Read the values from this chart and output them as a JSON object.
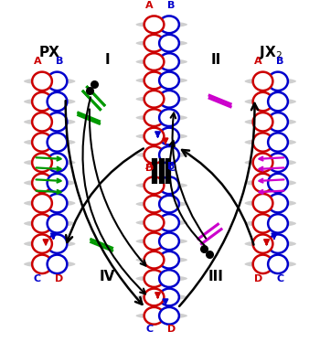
{
  "bg_color": "#ffffff",
  "red": "#cc0000",
  "blue": "#0000cc",
  "green": "#009900",
  "magenta": "#cc00cc",
  "black": "#000000",
  "gray": "#bbbbbb",
  "px_label": "PX",
  "jx2_label": "JX₂",
  "process_I": "I",
  "process_II": "II",
  "process_III": "III",
  "process_IV": "IV",
  "figw": 3.5,
  "figh": 3.74,
  "dpi": 100
}
